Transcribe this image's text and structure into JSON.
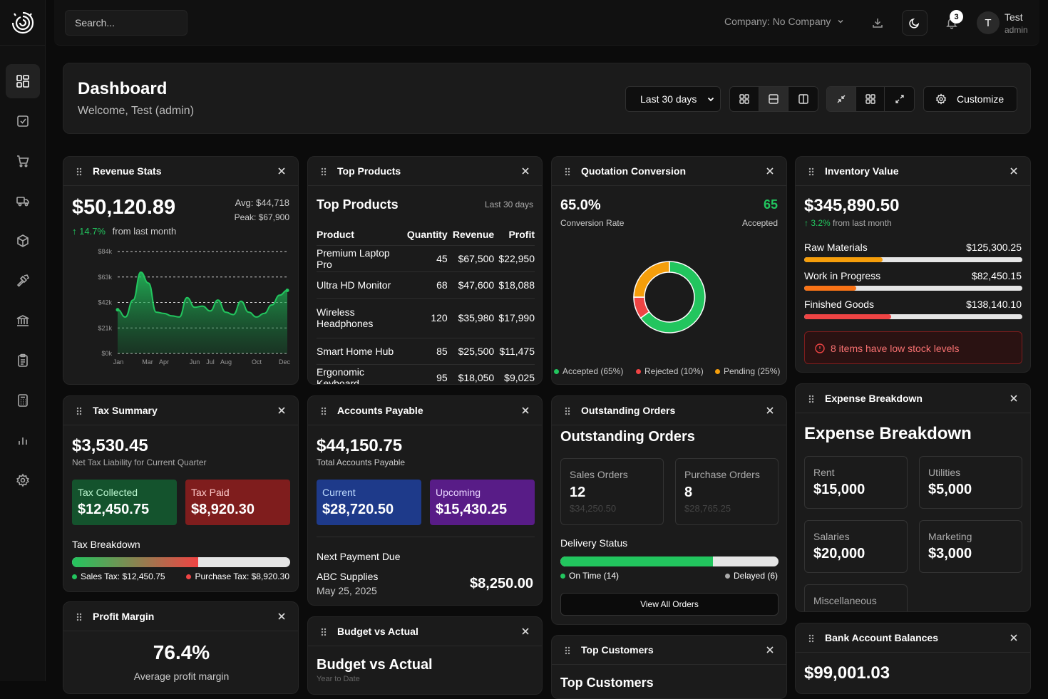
{
  "app": {
    "search_placeholder": "Search...",
    "company": "Company: No Company",
    "notifications": "3",
    "user_initial": "T",
    "user_name": "Test",
    "user_role": "admin"
  },
  "sidebar": {
    "items": [
      "dashboard-icon",
      "tasks-icon",
      "cart-icon",
      "truck-icon",
      "box-icon",
      "hammer-icon",
      "bank-icon",
      "clipboard-icon",
      "calculator-icon",
      "chart-icon",
      "settings-icon"
    ]
  },
  "header": {
    "title": "Dashboard",
    "welcome": "Welcome, Test (admin)",
    "range": "Last 30 days",
    "customize": "Customize"
  },
  "revenue": {
    "title": "Revenue Stats",
    "total": "$50,120.89",
    "avg": "Avg: $44,718",
    "peak": "Peak: $67,900",
    "change": "14.7%",
    "change_label": "from last month"
  },
  "chart_data": {
    "type": "area",
    "y_ticks": [
      "$84k",
      "$63k",
      "$42k",
      "$21k",
      "$0k"
    ],
    "x_ticks": [
      "Jan",
      "Mar",
      "Apr",
      "Jun",
      "Jul",
      "Aug",
      "Oct",
      "Dec"
    ],
    "ylim": [
      0,
      84000
    ],
    "values": [
      36000,
      30000,
      44000,
      67000,
      58000,
      34000,
      33000,
      31000,
      30000,
      46000,
      38000,
      39000,
      35000,
      44000,
      34000,
      32000,
      43000,
      34000,
      30000,
      33000,
      40000,
      48000,
      52000
    ],
    "grid": true
  },
  "top_products": {
    "title": "Top Products",
    "heading": "Top Products",
    "range": "Last 30 days",
    "cols": [
      "Product",
      "Quantity",
      "Revenue",
      "Profit"
    ],
    "rows": [
      [
        "Premium Laptop Pro",
        "45",
        "$67,500",
        "$22,950"
      ],
      [
        "Ultra HD Monitor",
        "68",
        "$47,600",
        "$18,088"
      ],
      [
        "Wireless Headphones",
        "120",
        "$35,980",
        "$17,990"
      ],
      [
        "Smart Home Hub",
        "85",
        "$25,500",
        "$11,475"
      ],
      [
        "Ergonomic Keyboard",
        "95",
        "$18,050",
        "$9,025"
      ]
    ]
  },
  "quotation": {
    "title": "Quotation Conversion",
    "rate": "65.0%",
    "rate_label": "Conversion Rate",
    "accepted": "65",
    "accepted_label": "Accepted",
    "legend": [
      "Accepted (65%)",
      "Rejected (10%)",
      "Pending (25%)"
    ],
    "slices": [
      65,
      10,
      25
    ],
    "colors": [
      "#22c55e",
      "#ef4444",
      "#f59e0b"
    ]
  },
  "inventory": {
    "title": "Inventory Value",
    "total": "$345,890.50",
    "change": "3.2%",
    "change_label": "from last month",
    "items": [
      {
        "name": "Raw Materials",
        "value": "$125,300.25",
        "pct": 36,
        "color": "#f59e0b"
      },
      {
        "name": "Work in Progress",
        "value": "$82,450.15",
        "pct": 24,
        "color": "#f97316"
      },
      {
        "name": "Finished Goods",
        "value": "$138,140.10",
        "pct": 40,
        "color": "#ef4444"
      }
    ],
    "alert": "8 items have low stock levels"
  },
  "tax": {
    "title": "Tax Summary",
    "total": "$3,530.45",
    "label": "Net Tax Liability for Current Quarter",
    "collected_label": "Tax Collected",
    "collected": "$12,450.75",
    "paid_label": "Tax Paid",
    "paid": "$8,920.30",
    "breakdown": "Tax Breakdown",
    "sales": "Sales Tax: $12,450.75",
    "purchase": "Purchase Tax: $8,920.30",
    "sales_pct": 58
  },
  "payable": {
    "title": "Accounts Payable",
    "total": "$44,150.75",
    "label": "Total Accounts Payable",
    "current_label": "Current",
    "current": "$28,720.50",
    "upcoming_label": "Upcoming",
    "upcoming": "$15,430.25",
    "next_label": "Next Payment Due",
    "vendor": "ABC Supplies",
    "date": "May 25, 2025",
    "amount": "$8,250.00"
  },
  "outstanding": {
    "title": "Outstanding Orders",
    "heading": "Outstanding Orders",
    "sales_label": "Sales Orders",
    "sales": "12",
    "sales_amt": "$34,250.50",
    "purchase_label": "Purchase Orders",
    "purchase": "8",
    "purchase_amt": "$28,765.25",
    "delivery": "Delivery Status",
    "on_time": "On Time (14)",
    "delayed": "Delayed (6)",
    "on_time_pct": 70,
    "view": "View All Orders"
  },
  "expense": {
    "title": "Expense Breakdown",
    "heading": "Expense Breakdown",
    "items": [
      {
        "name": "Rent",
        "value": "$15,000"
      },
      {
        "name": "Utilities",
        "value": "$5,000"
      },
      {
        "name": "Salaries",
        "value": "$20,000"
      },
      {
        "name": "Marketing",
        "value": "$3,000"
      },
      {
        "name": "Miscellaneous",
        "value": ""
      }
    ]
  },
  "profit": {
    "title": "Profit Margin",
    "value": "76.4%",
    "label": "Average profit margin"
  },
  "budget": {
    "title": "Budget vs Actual",
    "heading": "Budget vs Actual",
    "sub": "Year to Date"
  },
  "customers": {
    "title": "Top Customers",
    "heading": "Top Customers"
  },
  "bank": {
    "title": "Bank Account Balances",
    "total": "$99,001.03"
  }
}
